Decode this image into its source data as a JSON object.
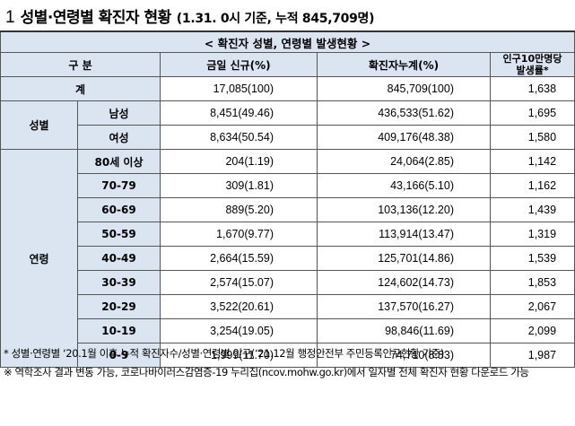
{
  "title": {
    "number": "1",
    "main": "성별·연령별 확진자 현황",
    "sub": "(1.31. 0시 기준, 누적 845,709명)"
  },
  "table": {
    "caption": "< 확진자 성별, 연령별 발생현황 >",
    "headers": {
      "category": "구 분",
      "new": "금일 신규(%)",
      "cumulative": "확진자누계(%)",
      "rate": "인구10만명당\n발생률*"
    },
    "total": {
      "label": "계",
      "new": "17,085(100)",
      "cumulative": "845,709(100)",
      "rate": "1,638"
    },
    "sex": {
      "group": "성별",
      "rows": [
        {
          "label": "남성",
          "new": "8,451(49.46)",
          "cumulative": "436,533(51.62)",
          "rate": "1,695"
        },
        {
          "label": "여성",
          "new": "8,634(50.54)",
          "cumulative": "409,176(48.38)",
          "rate": "1,580"
        }
      ]
    },
    "age": {
      "group": "연령",
      "rows": [
        {
          "label": "80세 이상",
          "new": "204(1.19)",
          "cumulative": "24,064(2.85)",
          "rate": "1,142"
        },
        {
          "label": "70-79",
          "new": "309(1.81)",
          "cumulative": "43,166(5.10)",
          "rate": "1,162"
        },
        {
          "label": "60-69",
          "new": "889(5.20)",
          "cumulative": "103,136(12.20)",
          "rate": "1,439"
        },
        {
          "label": "50-59",
          "new": "1,670(9.77)",
          "cumulative": "113,914(13.47)",
          "rate": "1,319"
        },
        {
          "label": "40-49",
          "new": "2,664(15.59)",
          "cumulative": "125,701(14.86)",
          "rate": "1,539"
        },
        {
          "label": "30-39",
          "new": "2,574(15.07)",
          "cumulative": "124,602(14.73)",
          "rate": "1,853"
        },
        {
          "label": "20-29",
          "new": "3,522(20.61)",
          "cumulative": "137,570(16.27)",
          "rate": "2,067"
        },
        {
          "label": "10-19",
          "new": "3,254(19.05)",
          "cumulative": "98,846(11.69)",
          "rate": "2,099"
        },
        {
          "label": "0-9",
          "new": "1,999(11.70)",
          "cumulative": "74,710(8.83)",
          "rate": "1,987"
        }
      ]
    }
  },
  "notes": [
    "* 성별·연령별 ‘20.1월 이후 누적 확진자수/성별·연령별 인구(‘21.12월 행정안전부 주민등록인구현황 기준)",
    "※ 역학조사 결과 변동 가능, 코로나바이러스감염증-19 누리집(ncov.mohw.go.kr)에서 일자별 전체 확진자 현황 다운로드 가능"
  ]
}
